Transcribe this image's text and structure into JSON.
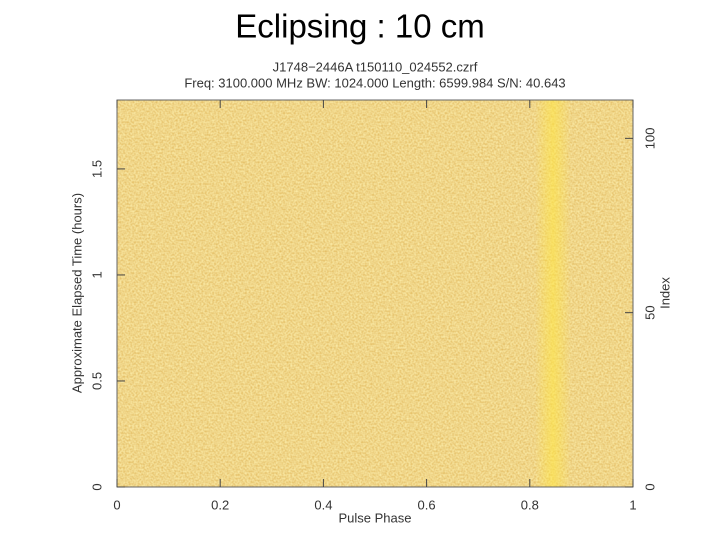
{
  "chart_data": {
    "type": "heatmap",
    "title": "Eclipsing : 10 cm",
    "subtitle": [
      "J1748−2446A t150110_024552.czrf",
      "Freq: 3100.000 MHz BW: 1024.000 Length: 6599.984 S/N: 40.643"
    ],
    "xlabel": "Pulse Phase",
    "ylabel": "Approximate Elapsed Time (hours)",
    "y2label": "Index",
    "xlim": [
      0,
      1
    ],
    "xticks": [
      0,
      0.2,
      0.4,
      0.6,
      0.8,
      1
    ],
    "ylim": [
      0,
      1.825
    ],
    "yticks": [
      0,
      0.5,
      1,
      1.5
    ],
    "y2lim": [
      0,
      111
    ],
    "y2ticks": [
      0,
      50,
      100
    ]
  }
}
